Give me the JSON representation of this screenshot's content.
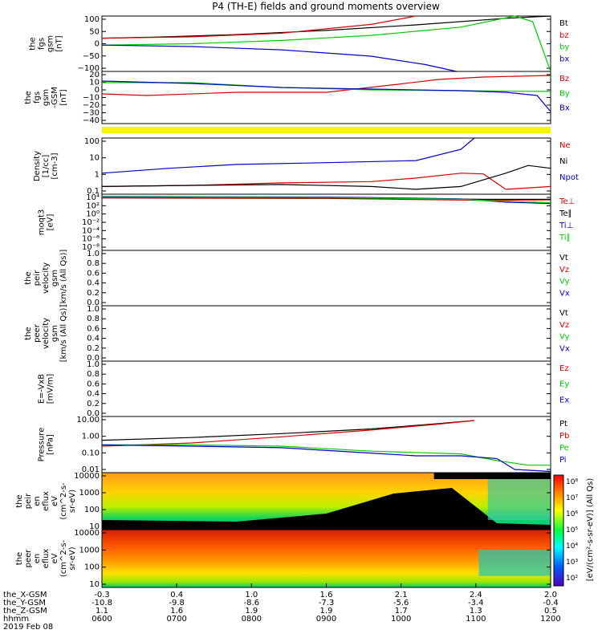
{
  "title": "P4 (TH-E) fields and ground moments overview",
  "colors": {
    "black": "#000000",
    "red": "#dd0000",
    "green": "#00cc00",
    "blue": "#0000cc",
    "yellow": "#f5f500"
  },
  "chart_data": [
    {
      "type": "line",
      "ylabel_lines": [
        "the",
        "fgs",
        "gsm",
        "[nT]"
      ],
      "yticks": [
        "100",
        "50",
        "0",
        "−50",
        "−100"
      ],
      "ylim": [
        -100,
        100
      ],
      "series": [
        {
          "name": "Bt",
          "color": "black",
          "x": [
            0,
            0.12,
            0.3,
            0.5,
            0.7,
            0.9,
            1.0
          ],
          "y": [
            20,
            24,
            33,
            48,
            68,
            92,
            110
          ]
        },
        {
          "name": "bz",
          "color": "red",
          "x": [
            0,
            0.2,
            0.4,
            0.6,
            0.7
          ],
          "y": [
            20,
            25,
            38,
            70,
            100
          ]
        },
        {
          "name": "by",
          "color": "green",
          "x": [
            0,
            0.2,
            0.4,
            0.6,
            0.8,
            0.92,
            0.96,
            1.0
          ],
          "y": [
            -5,
            0,
            12,
            30,
            60,
            100,
            80,
            -100
          ]
        },
        {
          "name": "bx",
          "color": "blue",
          "x": [
            0,
            0.2,
            0.4,
            0.6,
            0.72,
            0.79
          ],
          "y": [
            -5,
            -10,
            -22,
            -45,
            -75,
            -100
          ]
        }
      ]
    },
    {
      "type": "line",
      "ylabel_lines": [
        "the",
        "fgs",
        "gsm",
        "-GSM",
        "[nT]"
      ],
      "yticks": [
        "20",
        "10",
        "0",
        "−10",
        "−20",
        "−30",
        "−40"
      ],
      "ylim": [
        -45,
        20
      ],
      "series": [
        {
          "name": "Bz",
          "color": "red",
          "x": [
            0,
            0.1,
            0.3,
            0.5,
            0.66,
            0.75,
            0.85,
            1.0
          ],
          "y": [
            -8,
            -10,
            -6,
            -6,
            4,
            10,
            13,
            15
          ]
        },
        {
          "name": "By",
          "color": "green",
          "x": [
            0,
            0.2,
            0.4,
            0.6,
            0.8,
            1.0
          ],
          "y": [
            6,
            6,
            0,
            -3,
            -4,
            -5
          ]
        },
        {
          "name": "Bx",
          "color": "blue",
          "x": [
            0,
            0.2,
            0.4,
            0.6,
            0.8,
            0.9,
            0.97,
            1.0
          ],
          "y": [
            8,
            5,
            0,
            -2,
            -4,
            -6,
            -10,
            -30
          ]
        }
      ]
    },
    {
      "type": "line",
      "ylabel_lines": [
        "Density",
        "[1/cc]",
        "[cm-3]"
      ],
      "yticks": [
        "100",
        "10",
        "1",
        "0.1"
      ],
      "ylim": [
        0.1,
        300
      ],
      "log": true,
      "series": [
        {
          "name": "Ne",
          "color": "red",
          "x": [
            0,
            0.2,
            0.4,
            0.6,
            0.7,
            0.8,
            0.85,
            0.9,
            1.0
          ],
          "y": [
            0.3,
            0.35,
            0.5,
            0.6,
            1.0,
            2.0,
            1.8,
            0.2,
            0.3
          ]
        },
        {
          "name": "Ni",
          "color": "black",
          "x": [
            0,
            0.2,
            0.4,
            0.6,
            0.7,
            0.8,
            0.9,
            0.95,
            1.0
          ],
          "y": [
            0.3,
            0.35,
            0.4,
            0.3,
            0.2,
            0.3,
            2.0,
            6.0,
            4.0
          ]
        },
        {
          "name": "Npot",
          "color": "blue",
          "x": [
            0,
            0.15,
            0.3,
            0.5,
            0.7,
            0.8,
            0.83
          ],
          "y": [
            2,
            4,
            7,
            9,
            12,
            60,
            300
          ]
        }
      ]
    },
    {
      "type": "line",
      "ylabel_lines": [
        "moqt3",
        "[eV]"
      ],
      "yticks": [
        "10⁴",
        "10²",
        "10⁰",
        "10⁻²",
        "10⁻⁴",
        "10⁻⁶",
        "10⁻⁸"
      ],
      "ylim": [
        -8,
        4
      ],
      "series": [
        {
          "name": "Te⊥",
          "color": "red",
          "x": [
            0,
            0.5,
            0.85,
            1.0
          ],
          "y": [
            3.2,
            3.1,
            2.7,
            2.8
          ]
        },
        {
          "name": "Te∥",
          "color": "black",
          "x": [
            0,
            0.5,
            0.85,
            1.0
          ],
          "y": [
            3.3,
            3.2,
            2.9,
            2.9
          ]
        },
        {
          "name": "Ti⊥",
          "color": "blue",
          "x": [
            0,
            0.5,
            0.8,
            0.9,
            1.0
          ],
          "y": [
            3.5,
            3.4,
            3.0,
            2.3,
            2.0
          ]
        },
        {
          "name": "Ti∥",
          "color": "green",
          "x": [
            0,
            0.5,
            0.8,
            0.9,
            1.0
          ],
          "y": [
            3.4,
            3.3,
            2.9,
            2.5,
            2.2
          ]
        }
      ]
    },
    {
      "type": "line",
      "ylabel_lines": [
        "the",
        "peir",
        "velocity",
        "gsm",
        "[km/s (All Qs)]"
      ],
      "yticks": [
        "1.0",
        "0.8",
        "0.6",
        "0.4",
        "0.2",
        "0.0"
      ],
      "ylim": [
        0,
        1
      ],
      "series": [
        {
          "name": "Vt",
          "color": "black"
        },
        {
          "name": "Vz",
          "color": "red"
        },
        {
          "name": "Vy",
          "color": "green"
        },
        {
          "name": "Vx",
          "color": "blue"
        }
      ]
    },
    {
      "type": "line",
      "ylabel_lines": [
        "the",
        "peer",
        "velocity",
        "gsm",
        "[km/s (All Qs)]"
      ],
      "yticks": [
        "1.0",
        "0.8",
        "0.6",
        "0.4",
        "0.2",
        "0.0"
      ],
      "ylim": [
        0,
        1
      ],
      "series": [
        {
          "name": "Vt",
          "color": "black"
        },
        {
          "name": "Vz",
          "color": "red"
        },
        {
          "name": "Vy",
          "color": "green"
        },
        {
          "name": "Vx",
          "color": "blue"
        }
      ]
    },
    {
      "type": "line",
      "ylabel_lines": [
        "E=-VxB",
        "[mV/m]"
      ],
      "yticks": [
        "1.0",
        "0.8",
        "0.6",
        "0.4",
        "0.2",
        "0.0"
      ],
      "ylim": [
        0,
        1
      ],
      "series": [
        {
          "name": "Ez",
          "color": "red"
        },
        {
          "name": "Ey",
          "color": "green"
        },
        {
          "name": "Ex",
          "color": "blue"
        }
      ]
    },
    {
      "type": "line",
      "ylabel_lines": [
        "Pressure",
        "[nPa]"
      ],
      "yticks": [
        "10.00",
        "1.00",
        "0.10",
        "0.01"
      ],
      "ylim": [
        0.005,
        20
      ],
      "log": true,
      "series": [
        {
          "name": "Pt",
          "color": "black",
          "x": [
            0,
            0.2,
            0.4,
            0.6,
            0.75,
            0.83
          ],
          "y": [
            0.6,
            0.9,
            1.6,
            3.2,
            7,
            11
          ]
        },
        {
          "name": "Pb",
          "color": "red",
          "x": [
            0,
            0.2,
            0.4,
            0.6,
            0.75,
            0.83
          ],
          "y": [
            0.25,
            0.4,
            1.0,
            2.7,
            6.5,
            11
          ]
        },
        {
          "name": "Pe",
          "color": "green",
          "x": [
            0,
            0.2,
            0.4,
            0.6,
            0.8,
            0.88,
            0.95,
            1.0
          ],
          "y": [
            0.3,
            0.3,
            0.25,
            0.12,
            0.08,
            0.03,
            0.015,
            0.015
          ]
        },
        {
          "name": "Pi",
          "color": "blue",
          "x": [
            0,
            0.2,
            0.4,
            0.6,
            0.7,
            0.8,
            0.88,
            0.92,
            1.0
          ],
          "y": [
            0.3,
            0.25,
            0.2,
            0.09,
            0.06,
            0.06,
            0.04,
            0.008,
            0.006
          ]
        }
      ]
    },
    {
      "type": "heatmap",
      "ylabel_lines": [
        "the",
        "peir",
        "en",
        "eflux",
        "eV",
        "(cm^2-s-",
        "sr-eV)"
      ],
      "yticks": [
        "10000",
        "1000",
        "100",
        "10"
      ]
    },
    {
      "type": "heatmap",
      "ylabel_lines": [
        "the",
        "peer",
        "en",
        "eflux",
        "eV",
        "(cm^2-s-",
        "sr-eV)"
      ],
      "yticks": [
        "10000",
        "1000",
        "100",
        "10"
      ]
    }
  ],
  "colorbar": {
    "ticks": [
      "10⁸",
      "10⁷",
      "10⁶",
      "10⁵",
      "10⁴",
      "10³",
      "10²"
    ],
    "label": "[eV/(cm²-s-sr-eV)] (All Qs)"
  },
  "xaxis": {
    "row_labels": [
      "the_X-GSM",
      "the_Y-GSM",
      "the_Z-GSM",
      "hhmm",
      "2019 Feb 08"
    ],
    "columns": [
      [
        "-0.3",
        "-10.8",
        "1.1",
        "0600"
      ],
      [
        "0.4",
        "-9.8",
        "1.6",
        "0700"
      ],
      [
        "1.0",
        "-8.6",
        "1.9",
        "0800"
      ],
      [
        "1.6",
        "-7.3",
        "1.9",
        "0900"
      ],
      [
        "2.1",
        "-5.6",
        "1.7",
        "1000"
      ],
      [
        "2.4",
        "-3.4",
        "1.3",
        "1100"
      ],
      [
        "2.0",
        "-0.4",
        "0.5",
        "1200"
      ]
    ]
  }
}
